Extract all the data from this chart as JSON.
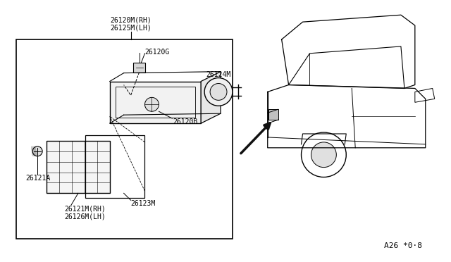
{
  "bg_color": "#ffffff",
  "line_color": "#000000",
  "text_color": "#000000",
  "part_labels": {
    "26120M_RH": "26120M(RH)",
    "26125M_LH": "26125M(LH)",
    "26120G": "26120G",
    "26124M": "26124M",
    "26120B": "26120B",
    "26121A": "26121A",
    "26121M_RH": "26121M(RH)",
    "26126M_LH": "26126M(LH)",
    "26123M": "26123M"
  },
  "ref_code": "A26 *0·8",
  "font_size": 7.0
}
